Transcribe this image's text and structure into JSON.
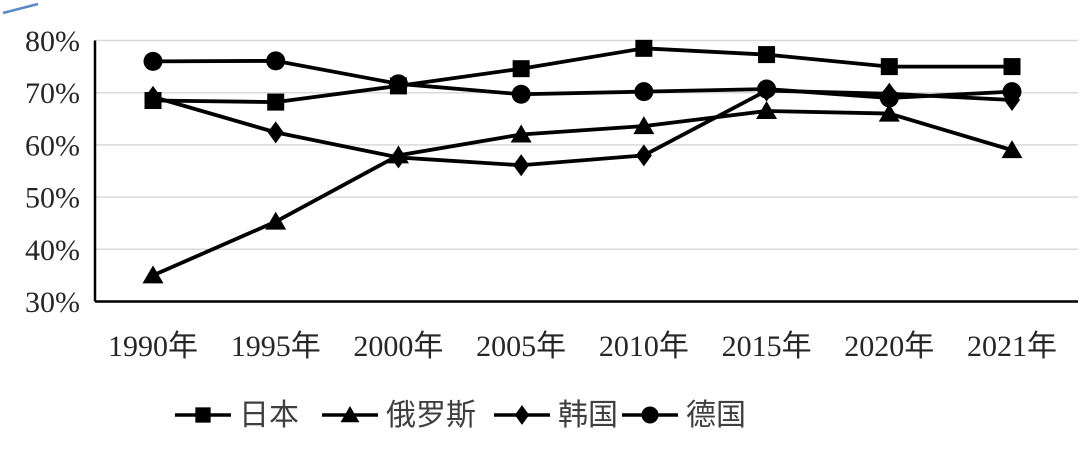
{
  "chart_data": {
    "type": "line",
    "title": "",
    "xlabel": "",
    "ylabel": "",
    "categories": [
      "1990年",
      "1995年",
      "2000年",
      "2005年",
      "2010年",
      "2015年",
      "2020年",
      "2021年"
    ],
    "series": [
      {
        "id": "japan",
        "name": "日本",
        "marker": "square",
        "values": [
          68.5,
          68.2,
          71.3,
          74.6,
          78.5,
          77.3,
          75.0,
          75.0
        ]
      },
      {
        "id": "russia",
        "name": "俄罗斯",
        "marker": "triangle",
        "values": [
          35.0,
          45.3,
          58.0,
          62.0,
          63.6,
          66.5,
          66.0,
          59.0
        ]
      },
      {
        "id": "korea",
        "name": "韩国",
        "marker": "diamond",
        "values": [
          69.2,
          62.4,
          57.6,
          56.1,
          58.0,
          70.4,
          69.8,
          68.6
        ]
      },
      {
        "id": "germany",
        "name": "德国",
        "marker": "circle",
        "values": [
          76.0,
          76.1,
          71.7,
          69.7,
          70.2,
          70.7,
          69.0,
          70.2
        ]
      }
    ],
    "yticks": [
      {
        "label": "80%",
        "value": 80
      },
      {
        "label": "70%",
        "value": 70
      },
      {
        "label": "60%",
        "value": 60
      },
      {
        "label": "50%",
        "value": 50
      },
      {
        "label": "40%",
        "value": 40
      },
      {
        "label": "30%",
        "value": 30
      }
    ],
    "ylim": [
      30,
      80
    ],
    "grid": true,
    "legend_position": "bottom",
    "colors": {
      "line": "#000000",
      "grid": "#d9d9d9",
      "axis": "#000000",
      "tick_text": "#262626",
      "legend_text": "#3f3f3f",
      "corner_artifact": "#5a8ac6"
    }
  }
}
